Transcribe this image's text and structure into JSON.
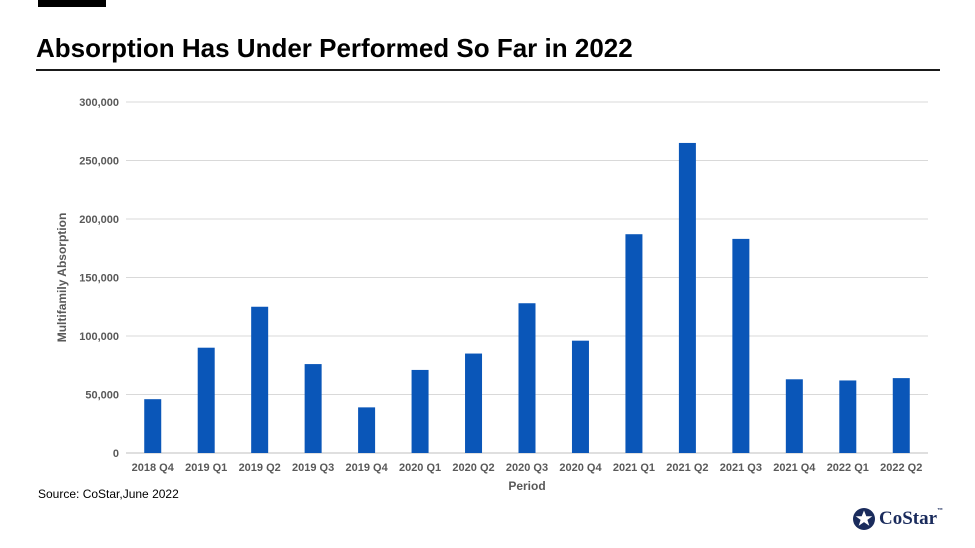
{
  "title": "Absorption Has Under Performed So Far in 2022",
  "source": "Source:  CoStar,June 2022",
  "logo": {
    "text": "CoStar",
    "trademark": "™",
    "icon": "costar-star-icon",
    "color": "#1a2b5c"
  },
  "colors": {
    "bar": "#0a56b8",
    "grid": "#d9d9d9",
    "axis_text": "#595959"
  },
  "chart_data": {
    "type": "bar",
    "title": "Absorption Has Under Performed So Far in 2022",
    "xlabel": "Period",
    "ylabel": "Multifamily Absorption",
    "ylim": [
      0,
      300000
    ],
    "yticks": [
      0,
      50000,
      100000,
      150000,
      200000,
      250000,
      300000
    ],
    "ytick_labels": [
      "0",
      "50,000",
      "100,000",
      "150,000",
      "200,000",
      "250,000",
      "300,000"
    ],
    "grid": true,
    "legend": "none",
    "categories": [
      "2018 Q4",
      "2019 Q1",
      "2019 Q2",
      "2019 Q3",
      "2019 Q4",
      "2020 Q1",
      "2020 Q2",
      "2020 Q3",
      "2020 Q4",
      "2021 Q1",
      "2021 Q2",
      "2021 Q3",
      "2021 Q4",
      "2022 Q1",
      "2022 Q2"
    ],
    "values": [
      46000,
      90000,
      125000,
      76000,
      39000,
      71000,
      85000,
      128000,
      96000,
      187000,
      265000,
      183000,
      63000,
      62000,
      64000
    ]
  }
}
